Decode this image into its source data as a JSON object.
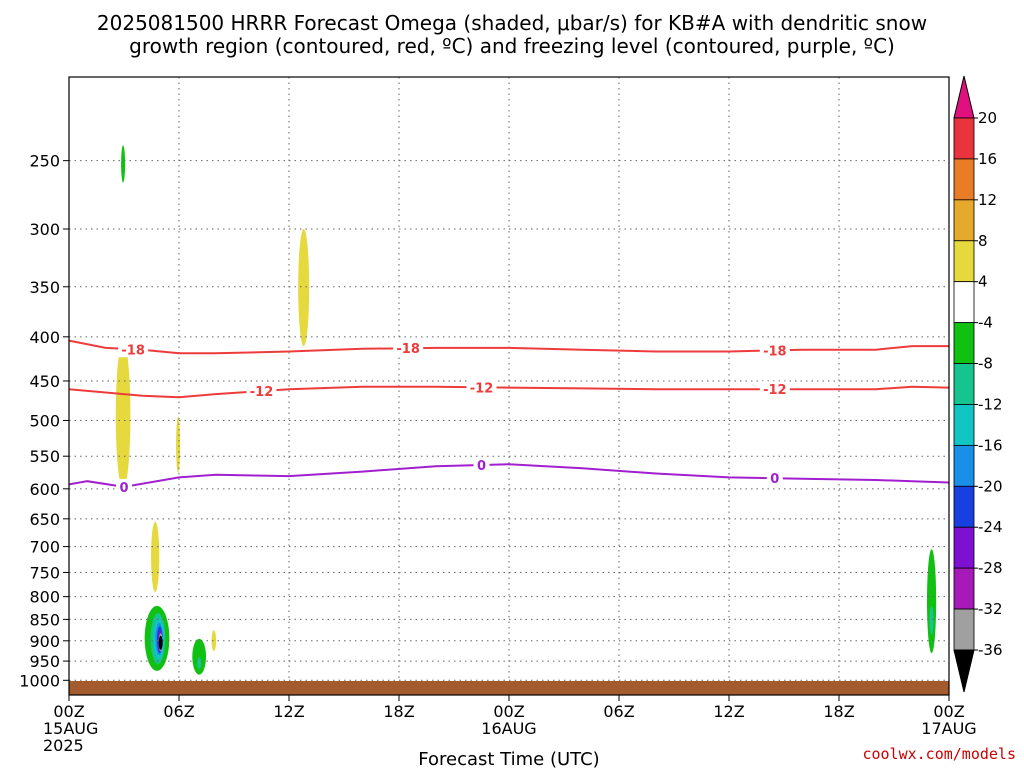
{
  "title_line1": "2025081500 HRRR Forecast Omega (shaded, μbar/s) for KB#A with dendritic snow",
  "title_line2": "growth region (contoured, red, ºC) and freezing level (contoured, purple, ºC)",
  "xlabel": "Forecast Time (UTC)",
  "credit": "coolwx.com/models",
  "chart_data": {
    "type": "contour",
    "x_unit": "forecast hour",
    "y_unit": "hPa",
    "xlim": [
      0,
      48
    ],
    "ylim": [
      1040,
      200
    ],
    "y_scale": "log",
    "grid": "dotted",
    "x_ticks": [
      {
        "hour": 0,
        "lines": [
          "00Z",
          "15AUG",
          "2025"
        ]
      },
      {
        "hour": 6,
        "lines": [
          "06Z"
        ]
      },
      {
        "hour": 12,
        "lines": [
          "12Z"
        ]
      },
      {
        "hour": 18,
        "lines": [
          "18Z"
        ]
      },
      {
        "hour": 24,
        "lines": [
          "00Z",
          "16AUG"
        ]
      },
      {
        "hour": 30,
        "lines": [
          "06Z"
        ]
      },
      {
        "hour": 36,
        "lines": [
          "12Z"
        ]
      },
      {
        "hour": 42,
        "lines": [
          "18Z"
        ]
      },
      {
        "hour": 48,
        "lines": [
          "00Z",
          "17AUG"
        ]
      }
    ],
    "y_ticks": [
      250,
      300,
      350,
      400,
      450,
      500,
      550,
      600,
      650,
      700,
      750,
      800,
      850,
      900,
      950,
      1000
    ],
    "colorbar": {
      "labels": [
        "20",
        "16",
        "12",
        "8",
        "4",
        "-4",
        "-8",
        "-12",
        "-16",
        "-20",
        "-24",
        "-28",
        "-32",
        "-36"
      ],
      "colors": [
        "#e8343c",
        "#e87d26",
        "#e5a92c",
        "#e5d93d",
        "#ffffff",
        "#11c111",
        "#15c48e",
        "#12c4c4",
        "#1a8fe8",
        "#1840e0",
        "#7d10d1",
        "#a51ab8",
        "#a0a0a0"
      ],
      "top_arrow_color": "#e0107e",
      "bottom_arrow_color": "#000000"
    },
    "contours": [
      {
        "label": "-18",
        "color": "#ee3b3b",
        "points": [
          [
            0,
            404
          ],
          [
            2,
            412
          ],
          [
            4,
            414
          ],
          [
            6,
            418
          ],
          [
            8,
            418
          ],
          [
            12,
            416
          ],
          [
            16,
            413
          ],
          [
            20,
            412
          ],
          [
            24,
            412
          ],
          [
            28,
            414
          ],
          [
            32,
            416
          ],
          [
            36,
            416
          ],
          [
            40,
            414
          ],
          [
            44,
            414
          ],
          [
            46,
            410
          ],
          [
            48,
            410
          ]
        ],
        "label_hours": [
          3.5,
          18.5,
          38.5
        ]
      },
      {
        "label": "-12",
        "color": "#ee3b3b",
        "points": [
          [
            0,
            460
          ],
          [
            2,
            464
          ],
          [
            4,
            468
          ],
          [
            6,
            470
          ],
          [
            8,
            466
          ],
          [
            12,
            460
          ],
          [
            16,
            457
          ],
          [
            20,
            457
          ],
          [
            24,
            458
          ],
          [
            28,
            459
          ],
          [
            32,
            460
          ],
          [
            36,
            460
          ],
          [
            40,
            460
          ],
          [
            44,
            460
          ],
          [
            46,
            457
          ],
          [
            48,
            458
          ]
        ],
        "label_hours": [
          10.5,
          22.5,
          38.5
        ]
      },
      {
        "label": "0",
        "color": "#a21fd0",
        "points": [
          [
            0,
            593
          ],
          [
            1,
            588
          ],
          [
            3,
            597
          ],
          [
            6,
            582
          ],
          [
            8,
            578
          ],
          [
            12,
            580
          ],
          [
            16,
            573
          ],
          [
            20,
            565
          ],
          [
            24,
            562
          ],
          [
            28,
            568
          ],
          [
            32,
            576
          ],
          [
            36,
            582
          ],
          [
            40,
            584
          ],
          [
            44,
            586
          ],
          [
            46,
            588
          ],
          [
            48,
            590
          ]
        ],
        "label_hours": [
          3,
          22.5,
          38.5
        ]
      }
    ],
    "shaded_cells": [
      {
        "value": -6,
        "color": "#11c111",
        "t": 2.95,
        "p": 251,
        "dt": 0.12,
        "p_top": 240,
        "p_bottom": 265
      },
      {
        "value": 5,
        "color": "#e5d93d",
        "t": 12.8,
        "p": 355,
        "dt": 0.6,
        "p_top": 300,
        "p_bottom": 410
      },
      {
        "value": 5,
        "color": "#e5d93d",
        "t": 2.95,
        "p": 500,
        "dt": 0.8,
        "p_top": 405,
        "p_bottom": 600
      },
      {
        "value": 5,
        "color": "#e5d93d",
        "t": 5.95,
        "p": 535,
        "dt": 0.2,
        "p_top": 495,
        "p_bottom": 575
      },
      {
        "value": 5,
        "color": "#e5d93d",
        "t": 4.7,
        "p": 720,
        "dt": 0.45,
        "p_top": 655,
        "p_bottom": 790
      },
      {
        "value": 5,
        "color": "#e5d93d",
        "t": 7.9,
        "p": 900,
        "dt": 0.25,
        "p_top": 875,
        "p_bottom": 925
      },
      {
        "value": -6,
        "color": "#11c111",
        "t": 4.8,
        "p": 890,
        "dt": 1.35,
        "p_top": 820,
        "p_bottom": 975
      },
      {
        "value": -10,
        "color": "#15c48e",
        "t": 4.85,
        "p": 893,
        "dt": 0.8,
        "p_top": 836,
        "p_bottom": 957
      },
      {
        "value": -14,
        "color": "#12c4c4",
        "t": 4.9,
        "p": 895,
        "dt": 0.6,
        "p_top": 848,
        "p_bottom": 945
      },
      {
        "value": -18,
        "color": "#1a8fe8",
        "t": 4.92,
        "p": 898,
        "dt": 0.42,
        "p_top": 858,
        "p_bottom": 935
      },
      {
        "value": -22,
        "color": "#1840e0",
        "t": 4.95,
        "p": 900,
        "dt": 0.3,
        "p_top": 866,
        "p_bottom": 930
      },
      {
        "value": -26,
        "color": "#7d10d1",
        "t": 4.97,
        "p": 902,
        "dt": 0.22,
        "p_top": 874,
        "p_bottom": 928
      },
      {
        "value": -30,
        "color": "#a0a0a0",
        "t": 5.0,
        "p": 905,
        "dt": 0.14,
        "p_top": 882,
        "p_bottom": 926
      },
      {
        "value": -40,
        "color": "#000000",
        "t": 5.0,
        "p": 905,
        "dt": 0.09,
        "p_top": 888,
        "p_bottom": 922
      },
      {
        "value": -6,
        "color": "#11c111",
        "t": 7.1,
        "p": 940,
        "dt": 0.75,
        "p_top": 895,
        "p_bottom": 985
      },
      {
        "value": -10,
        "color": "#15c48e",
        "t": 7.1,
        "p": 955,
        "dt": 0.2,
        "p_top": 940,
        "p_bottom": 970
      },
      {
        "value": -6,
        "color": "#11c111",
        "t": 47.05,
        "p": 815,
        "dt": 0.5,
        "p_top": 705,
        "p_bottom": 930
      },
      {
        "value": -10,
        "color": "#15c48e",
        "t": 47.05,
        "p": 850,
        "dt": 0.15,
        "p_top": 820,
        "p_bottom": 885
      }
    ],
    "terrain_color": "#a35a2d"
  }
}
